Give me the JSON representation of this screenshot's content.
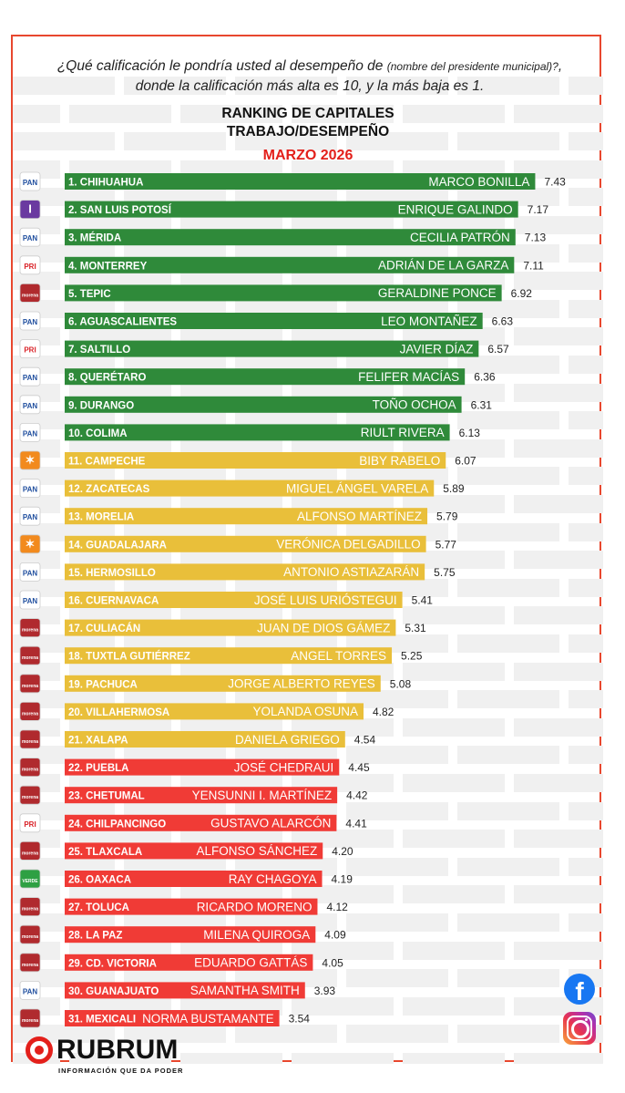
{
  "question": {
    "part1": "¿Qué calificación le pondría usted al desempeño de ",
    "small": "(nombre del presidente municipal)?",
    "part2": ", donde la calificación más alta es 10, y la más baja es 1."
  },
  "title": {
    "line1": "RANKING DE CAPITALES",
    "line2": "TRABAJO/DESEMPEÑO",
    "line3": "MARZO 2026"
  },
  "colors": {
    "green": "#2f8a3a",
    "yellow": "#e9bf3a",
    "red": "#f03b36",
    "frame": "#e8472e"
  },
  "party_styles": {
    "PAN": {
      "bg": "#ffffff",
      "fg": "#1f4e9e",
      "text": "PAN"
    },
    "PT": {
      "bg": "#6a3aa0",
      "fg": "#ffffff",
      "text": "I"
    },
    "PRI": {
      "bg": "#ffffff",
      "fg": "#d92026",
      "text": "PRI"
    },
    "MORENA": {
      "bg": "#b02a2e",
      "fg": "#ffffff",
      "text": "morena"
    },
    "MC": {
      "bg": "#f28a1d",
      "fg": "#ffffff",
      "text": "✶"
    },
    "VERDE": {
      "bg": "#2ea043",
      "fg": "#ffffff",
      "text": "VERDE"
    }
  },
  "chart_data": {
    "type": "bar",
    "orientation": "horizontal",
    "title": "RANKING DE CAPITALES TRABAJO/DESEMPEÑO",
    "subtitle": "MARZO 2026",
    "categories": [
      "1. CHIHUAHUA",
      "2. SAN LUIS POTOSÍ",
      "3. MÉRIDA",
      "4. MONTERREY",
      "5. TEPIC",
      "6. AGUASCALIENTES",
      "7. SALTILLO",
      "8. QUERÉTARO",
      "9. DURANGO",
      "10. COLIMA",
      "11. CAMPECHE",
      "12. ZACATECAS",
      "13. MORELIA",
      "14. GUADALAJARA",
      "15. HERMOSILLO",
      "16. CUERNAVACA",
      "17. CULIACÁN",
      "18. TUXTLA GUTIÉRREZ",
      "19. PACHUCA",
      "20. VILLAHERMOSA",
      "21. XALAPA",
      "22. PUEBLA",
      "23. CHETUMAL",
      "24. CHILPANCINGO",
      "25. TLAXCALA",
      "26. OAXACA",
      "27. TOLUCA",
      "28. LA PAZ",
      "29. CD. VICTORIA",
      "30. GUANAJUATO",
      "31. MEXICALI"
    ],
    "names": [
      "MARCO BONILLA",
      "ENRIQUE GALINDO",
      "CECILIA PATRÓN",
      "ADRIÁN DE LA GARZA",
      "GERALDINE PONCE",
      "LEO MONTAÑEZ",
      "JAVIER DÍAZ",
      "FELIFER MACÍAS",
      "TOÑO OCHOA",
      "RIULT RIVERA",
      "BIBY RABELO",
      "MIGUEL ÁNGEL VARELA",
      "ALFONSO MARTÍNEZ",
      "VERÓNICA DELGADILLO",
      "ANTONIO ASTIAZARÁN",
      "JOSÉ LUIS URIÓSTEGUI",
      "JUAN DE DIOS GÁMEZ",
      "ANGEL TORRES",
      "JORGE ALBERTO REYES",
      "YOLANDA OSUNA",
      "DANIELA GRIEGO",
      "JOSÉ CHEDRAUI",
      "YENSUNNI I. MARTÍNEZ",
      "GUSTAVO ALARCÓN",
      "ALFONSO SÁNCHEZ",
      "RAY CHAGOYA",
      "RICARDO MORENO",
      "MILENA QUIROGA",
      "EDUARDO GATTÁS",
      "SAMANTHA SMITH",
      "NORMA BUSTAMANTE"
    ],
    "values": [
      7.43,
      7.17,
      7.13,
      7.11,
      6.92,
      6.63,
      6.57,
      6.36,
      6.31,
      6.13,
      6.07,
      5.89,
      5.79,
      5.77,
      5.75,
      5.41,
      5.31,
      5.25,
      5.08,
      4.82,
      4.54,
      4.45,
      4.42,
      4.41,
      4.2,
      4.19,
      4.12,
      4.09,
      4.05,
      3.93,
      3.54
    ],
    "value_labels": [
      "7.43",
      "7.17",
      "7.13",
      "7.11",
      "6.92",
      "6.63",
      "6.57",
      "6.36",
      "6.31",
      "6.13",
      "6.07",
      "5.89",
      "5.79",
      "5.77",
      "5.75",
      "5.41",
      "5.31",
      "5.25",
      "5.08",
      "4.82",
      "4.54",
      "4.45",
      "4.42",
      "4.41",
      "4.20",
      "4.19",
      "4.12",
      "4.09",
      "4.05",
      "3.93",
      "3.54"
    ],
    "parties": [
      "PAN",
      "PT",
      "PAN",
      "PRI",
      "MORENA",
      "PAN",
      "PRI",
      "PAN",
      "PAN",
      "PAN",
      "MC",
      "PAN",
      "PAN",
      "MC",
      "PAN",
      "PAN",
      "MORENA",
      "MORENA",
      "MORENA",
      "MORENA",
      "MORENA",
      "MORENA",
      "MORENA",
      "PRI",
      "MORENA",
      "VERDE",
      "MORENA",
      "MORENA",
      "MORENA",
      "PAN",
      "MORENA"
    ],
    "color_groups": [
      "green",
      "green",
      "green",
      "green",
      "green",
      "green",
      "green",
      "green",
      "green",
      "green",
      "yellow",
      "yellow",
      "yellow",
      "yellow",
      "yellow",
      "yellow",
      "yellow",
      "yellow",
      "yellow",
      "yellow",
      "yellow",
      "red",
      "red",
      "red",
      "red",
      "red",
      "red",
      "red",
      "red",
      "red",
      "red"
    ],
    "xlim": [
      0,
      8
    ]
  },
  "social": {
    "facebook_icon": "facebook-icon",
    "instagram_icon": "instagram-icon",
    "facebook_glyph": "f"
  },
  "brand": {
    "name": "RUBRUM",
    "tagline": "INFORMACIÓN QUE DA PODER"
  }
}
